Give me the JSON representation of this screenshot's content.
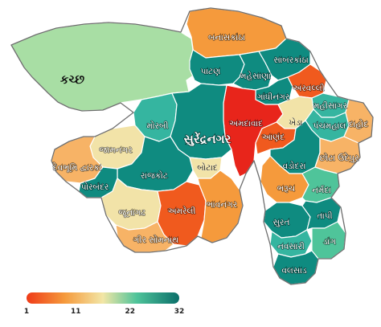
{
  "colors": {
    "orange_red": "#f05a1e",
    "red": "#e8251b",
    "orange": "#f59a3c",
    "light_orange": "#f7b366",
    "cream": "#f2e3a8",
    "light_green": "#a8dea4",
    "green": "#4fc49a",
    "teal": "#0f8b80",
    "teal_light": "#35b5a0",
    "legend_low": "#ef3b18",
    "legend_mid": "#f2e6a6",
    "legend_high": "#0b6f6a"
  },
  "districts": [
    {
      "name": "કચ્છ",
      "rank_color": "light_green"
    },
    {
      "name": "બનાસકાંઠા",
      "rank_color": "orange"
    },
    {
      "name": "પાટણ",
      "rank_color": "teal"
    },
    {
      "name": "મહેસાણા",
      "rank_color": "teal"
    },
    {
      "name": "સાબરકાંઠા",
      "rank_color": "teal"
    },
    {
      "name": "અરવલ્લી",
      "rank_color": "orange_red"
    },
    {
      "name": "ગાંધીનગર",
      "rank_color": "teal"
    },
    {
      "name": "મહીસાગર",
      "rank_color": "teal_light"
    },
    {
      "name": "અમદાવાદ",
      "rank_color": "red"
    },
    {
      "name": "ખેડા",
      "rank_color": "cream"
    },
    {
      "name": "પંચમહાલ",
      "rank_color": "teal_light"
    },
    {
      "name": "દાહોદ",
      "rank_color": "light_orange"
    },
    {
      "name": "મોરબી",
      "rank_color": "teal_light"
    },
    {
      "name": "સુરેંદ્રનગર",
      "rank_color": "teal"
    },
    {
      "name": "આણંદ",
      "rank_color": "orange_red"
    },
    {
      "name": "વડોદરા",
      "rank_color": "teal"
    },
    {
      "name": "છોટા ઉદેપુર",
      "rank_color": "light_orange"
    },
    {
      "name": "જામનગર",
      "rank_color": "cream"
    },
    {
      "name": "દેવભૂમિ દ્વારકા",
      "rank_color": "light_orange"
    },
    {
      "name": "રાજકોટ",
      "rank_color": "teal"
    },
    {
      "name": "બોટાદ",
      "rank_color": "cream"
    },
    {
      "name": "ભરૂચ",
      "rank_color": "orange"
    },
    {
      "name": "નર્મદા",
      "rank_color": "green"
    },
    {
      "name": "પોરબંદર",
      "rank_color": "teal"
    },
    {
      "name": "જૂનાગઢ",
      "rank_color": "cream"
    },
    {
      "name": "અમરેલી",
      "rank_color": "orange_red"
    },
    {
      "name": "ભાવનગર",
      "rank_color": "orange"
    },
    {
      "name": "ગીર સોમનાથ",
      "rank_color": "light_orange"
    },
    {
      "name": "સુરત",
      "rank_color": "teal"
    },
    {
      "name": "તાપી",
      "rank_color": "teal"
    },
    {
      "name": "નવસારી",
      "rank_color": "teal_light"
    },
    {
      "name": "ડાંગ",
      "rank_color": "green"
    },
    {
      "name": "વલસાડ",
      "rank_color": "teal"
    }
  ],
  "legend": {
    "ticks": [
      {
        "label": "1",
        "value": 1
      },
      {
        "label": "11",
        "value": 11
      },
      {
        "label": "22",
        "value": 22
      },
      {
        "label": "32",
        "value": 32
      }
    ],
    "min": 1,
    "max": 32
  }
}
